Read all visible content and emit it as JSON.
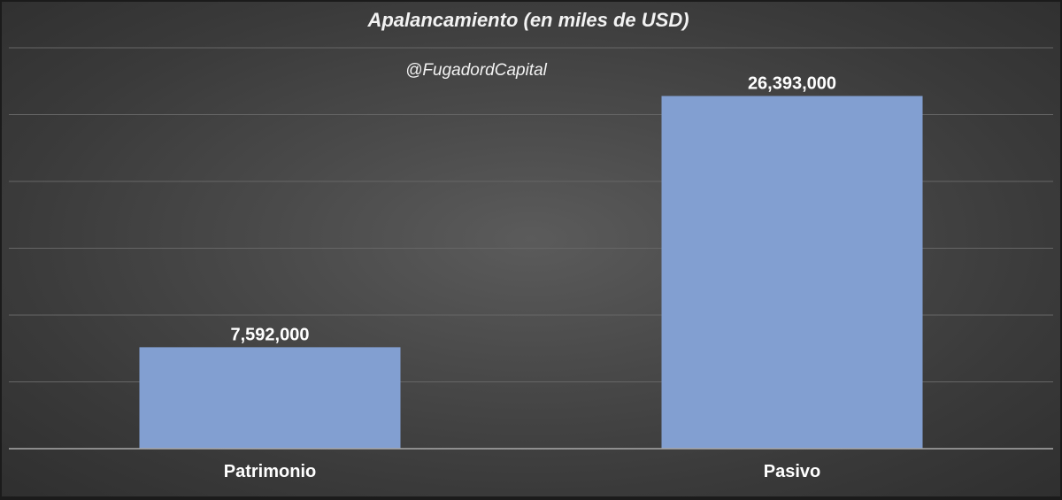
{
  "chart_data": {
    "type": "bar",
    "title": "Apalancamiento (en miles de USD)",
    "subtitle": "@FugadordCapital",
    "categories": [
      "Patrimonio",
      "Pasivo"
    ],
    "values": [
      7592000,
      26393000
    ],
    "data_labels": [
      "7,592,000",
      "26,393,000"
    ],
    "ylim": [
      0,
      30000000
    ],
    "grid_step": 5000000,
    "grid": true,
    "y_axis_labels_visible": false,
    "legend": "none",
    "xlabel": "",
    "ylabel": "",
    "colors": {
      "bar": "#829fd1",
      "gridline": "#666666",
      "axis_line": "#a9a9a9",
      "text": "#ffffff"
    }
  }
}
